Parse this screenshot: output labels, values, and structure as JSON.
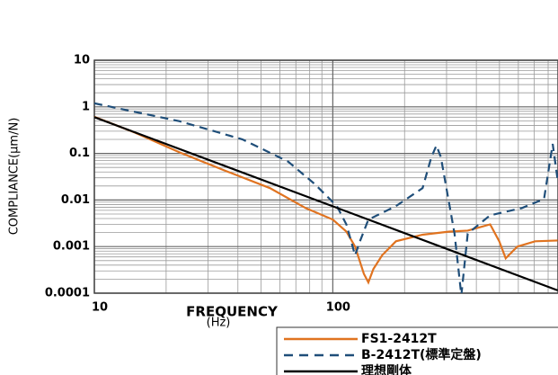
{
  "chart_data": {
    "type": "line",
    "xscale": "log",
    "yscale": "log",
    "y_label": "COMPLIANCE(μm/N)",
    "x_label": "FREQUENCY",
    "x_unit": "(Hz)",
    "xlim": [
      10,
      880
    ],
    "ylim": [
      0.0001,
      10
    ],
    "xticks": [
      10,
      100
    ],
    "yticks": [
      0.0001,
      0.001,
      0.01,
      0.1,
      1,
      10
    ],
    "grid": true,
    "series": [
      {
        "name": "FS1-2412T",
        "color": "#e07320",
        "dash": false,
        "x": [
          10,
          14.8,
          22.8,
          35.2,
          54.5,
          77,
          100,
          114,
          124,
          135,
          141,
          148,
          161,
          184,
          238,
          309,
          368,
          457,
          499,
          531,
          594,
          706,
          877
        ],
        "values": [
          0.61,
          0.28,
          0.105,
          0.043,
          0.018,
          0.0067,
          0.0038,
          0.0021,
          0.001,
          0.00026,
          0.00017,
          0.00033,
          0.00065,
          0.0013,
          0.0018,
          0.0021,
          0.0022,
          0.003,
          0.0013,
          0.00056,
          0.001,
          0.0013,
          0.00135
        ]
      },
      {
        "name": "B-2412T(標準定盤)",
        "color": "#1f4e79",
        "dash": true,
        "x": [
          10,
          22.8,
          41.8,
          64.9,
          84,
          104,
          114,
          124,
          130,
          141,
          184,
          238,
          259,
          272,
          284,
          324,
          346,
          368,
          457,
          620,
          769,
          836,
          877
        ],
        "values": [
          1.19,
          0.49,
          0.2,
          0.067,
          0.022,
          0.0074,
          0.003,
          0.00065,
          0.0013,
          0.0038,
          0.0074,
          0.018,
          0.083,
          0.148,
          0.083,
          0.0019,
          9e-05,
          0.0019,
          0.0047,
          0.0067,
          0.0105,
          0.16,
          0.027
        ]
      },
      {
        "name": "理想剛体",
        "color": "#000000",
        "dash": false,
        "x": [
          10,
          877
        ],
        "values": [
          0.6,
          0.000115
        ]
      }
    ]
  }
}
